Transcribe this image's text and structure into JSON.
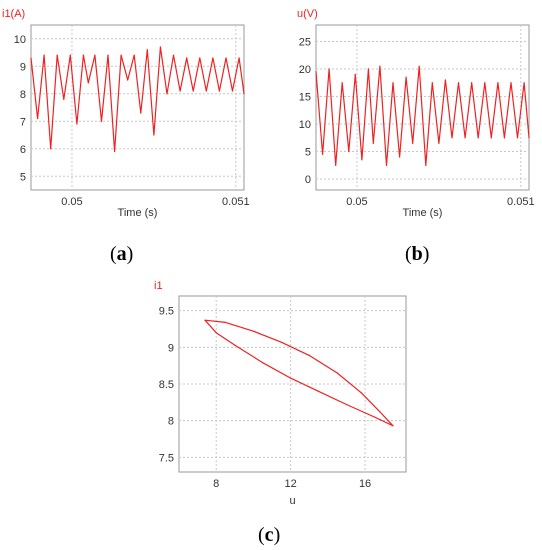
{
  "chart_data": [
    {
      "type": "line",
      "panel": "a",
      "ylabel": "i1(A)",
      "xlabel": "Time (s)",
      "xticks": [
        "0.05",
        "0.051"
      ],
      "yticks": [
        5,
        6,
        7,
        8,
        9,
        10
      ],
      "xlim": [
        0.04975,
        0.05105
      ],
      "ylim": [
        4.5,
        10.5
      ],
      "grid": true,
      "series": [
        {
          "color": "#ee2222",
          "x": [
            0.04975,
            0.04979,
            0.04983,
            0.04987,
            0.04991,
            0.04995,
            0.04999,
            0.05003,
            0.05007,
            0.0501,
            0.05014,
            0.05018,
            0.05022,
            0.05026,
            0.0503,
            0.05034,
            0.05038,
            0.05042,
            0.05046,
            0.0505,
            0.05054,
            0.05058,
            0.05062,
            0.05066,
            0.0507,
            0.05074,
            0.05078,
            0.05082,
            0.05086,
            0.0509,
            0.05094,
            0.05098,
            0.05102,
            0.05105
          ],
          "y": [
            9.3,
            7.1,
            9.4,
            6.0,
            9.4,
            7.8,
            9.4,
            6.9,
            9.4,
            8.4,
            9.4,
            7.0,
            9.4,
            5.9,
            9.4,
            8.5,
            9.4,
            7.3,
            9.6,
            6.5,
            9.7,
            8.0,
            9.4,
            8.1,
            9.3,
            8.1,
            9.3,
            8.1,
            9.3,
            8.1,
            9.3,
            8.1,
            9.3,
            8.0
          ]
        }
      ]
    },
    {
      "type": "line",
      "panel": "b",
      "ylabel": "u(V)",
      "xlabel": "Time (s)",
      "xticks": [
        "0.05",
        "0.051"
      ],
      "yticks": [
        0,
        5,
        10,
        15,
        20,
        25
      ],
      "xlim": [
        0.04975,
        0.05105
      ],
      "ylim": [
        -2,
        28
      ],
      "grid": true,
      "series": [
        {
          "color": "#ee2222",
          "x": [
            0.04975,
            0.04979,
            0.04983,
            0.04987,
            0.04991,
            0.04995,
            0.04999,
            0.05003,
            0.05007,
            0.0501,
            0.05014,
            0.05018,
            0.05022,
            0.05026,
            0.0503,
            0.05034,
            0.05038,
            0.05042,
            0.05046,
            0.0505,
            0.05054,
            0.05058,
            0.05062,
            0.05066,
            0.0507,
            0.05074,
            0.05078,
            0.05082,
            0.05086,
            0.0509,
            0.05094,
            0.05098,
            0.05102,
            0.05105
          ],
          "y": [
            19.5,
            4.5,
            20.0,
            2.5,
            17.5,
            5.0,
            19.0,
            3.5,
            20.0,
            6.5,
            20.5,
            2.5,
            17.5,
            4.0,
            18.5,
            6.5,
            20.5,
            2.5,
            17.5,
            6.5,
            18.0,
            7.5,
            17.5,
            7.5,
            17.5,
            7.5,
            17.5,
            7.5,
            17.5,
            7.5,
            17.5,
            7.5,
            17.5,
            7.5
          ]
        }
      ]
    },
    {
      "type": "line",
      "panel": "c",
      "ylabel": "i1",
      "xlabel": "u",
      "xticks": [
        8,
        12,
        16
      ],
      "yticks": [
        7.5,
        8,
        8.5,
        9,
        9.5
      ],
      "xlim": [
        6,
        18.2
      ],
      "ylim": [
        7.3,
        9.7
      ],
      "grid": true,
      "series": [
        {
          "color": "#ee2222",
          "x": [
            7.4,
            8.5,
            10.0,
            11.5,
            13.0,
            14.5,
            15.8,
            16.8,
            17.5,
            16.5,
            15.0,
            13.5,
            12.0,
            10.5,
            9.0,
            8.0,
            7.4
          ],
          "y": [
            9.37,
            9.34,
            9.22,
            9.07,
            8.89,
            8.65,
            8.38,
            8.12,
            7.93,
            8.05,
            8.22,
            8.4,
            8.58,
            8.79,
            9.03,
            9.2,
            9.37
          ]
        }
      ]
    }
  ],
  "captions": {
    "a": {
      "open": "(",
      "letter": "a",
      "close": ")"
    },
    "b": {
      "open": "(",
      "letter": "b",
      "close": ")"
    },
    "c": {
      "open": "(",
      "letter": "c",
      "close": ")"
    }
  }
}
